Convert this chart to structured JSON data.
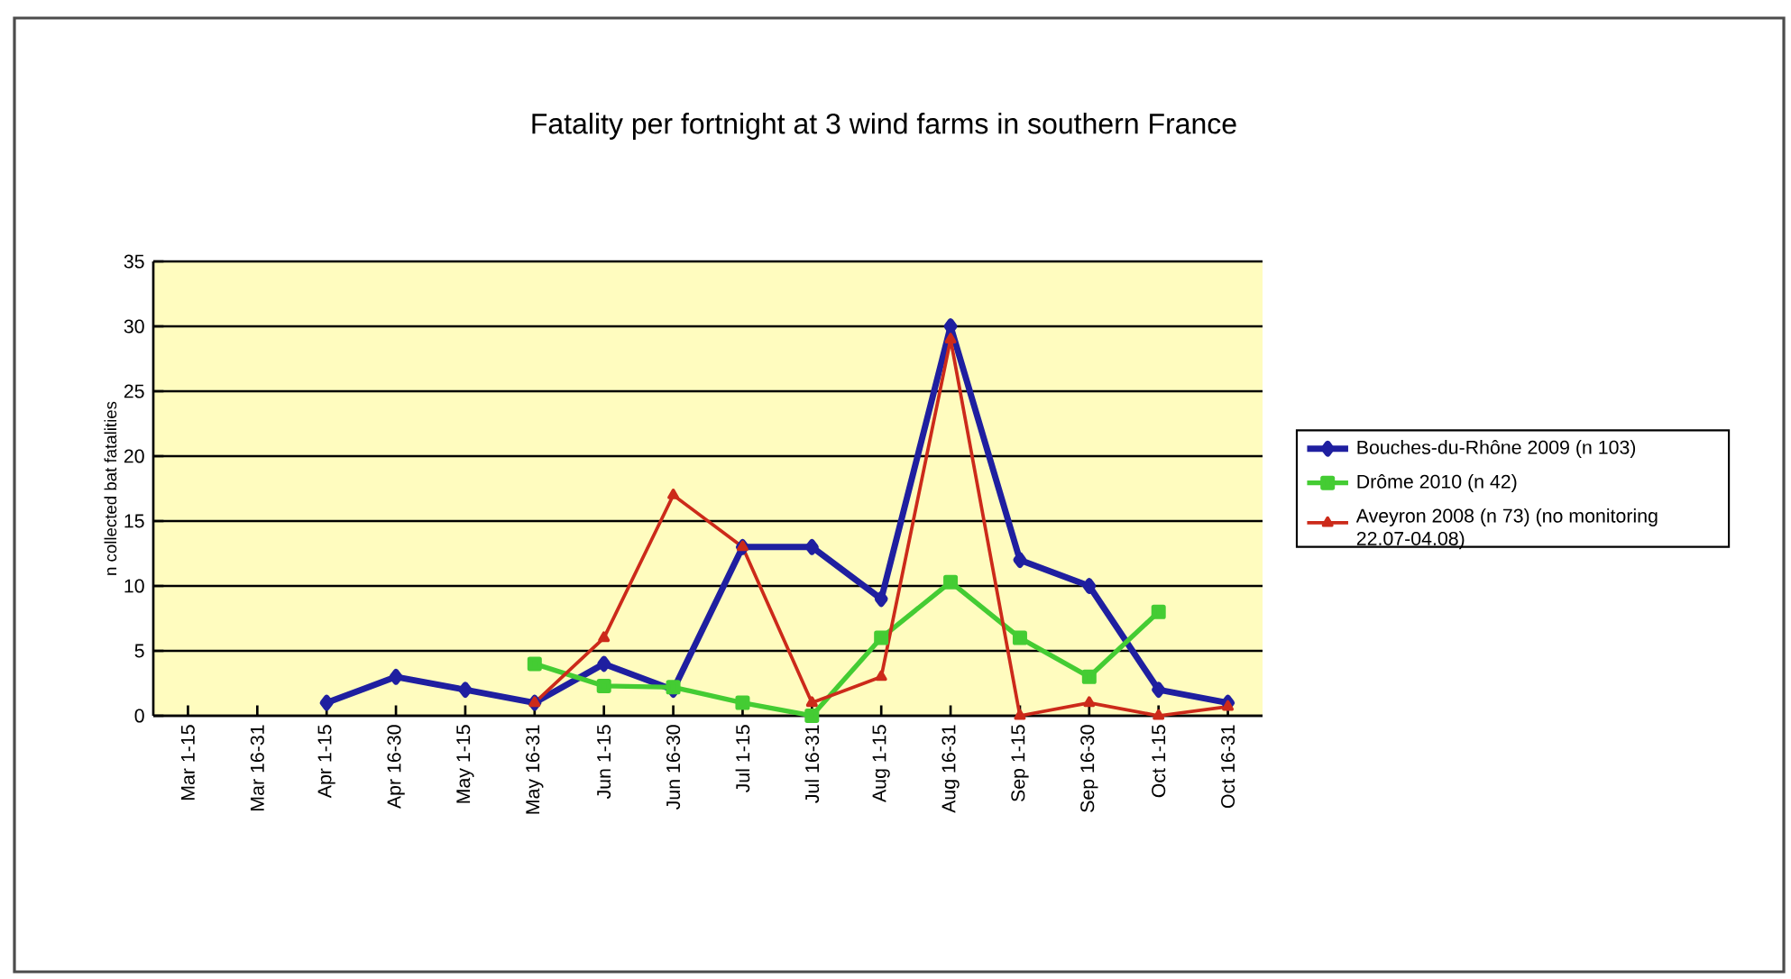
{
  "chart_data": {
    "type": "line",
    "title": "Fatality per fortnight  at 3 wind farms in southern France",
    "ylabel": "n collected bat fatalities",
    "categories": [
      "Mar 1-15",
      "Mar 16-31",
      "Apr 1-15",
      "Apr 16-30",
      "May 1-15",
      "May 16-31",
      "Jun 1-15",
      "Jun 16-30",
      "Jul 1-15",
      "Jul 16-31",
      "Aug 1-15",
      "Aug 16-31",
      "Sep 1-15",
      "Sep 16-30",
      "Oct 1-15",
      "Oct 16-31"
    ],
    "series": [
      {
        "name": "Bouches-du-Rhône 2009 (n 103)",
        "color": "#1f1fa0",
        "marker": "diamond",
        "values": [
          null,
          null,
          1,
          3,
          2,
          1,
          4,
          2,
          13,
          13,
          9,
          30,
          12,
          10,
          2,
          1
        ]
      },
      {
        "name": "Drôme  2010 (n 42)",
        "color": "#44cc33",
        "marker": "square",
        "values": [
          null,
          null,
          null,
          null,
          null,
          4,
          2.3,
          2.2,
          1,
          0,
          6,
          10.3,
          6,
          3,
          8,
          null
        ]
      },
      {
        "name": "Aveyron 2008 (n 73) (no monitoring 22.07-04.08)",
        "color": "#cc2a1a",
        "marker": "triangle",
        "values": [
          null,
          null,
          null,
          null,
          null,
          1,
          6,
          17,
          13,
          1,
          3,
          29,
          0,
          1,
          0,
          0.7
        ]
      }
    ],
    "ylim": [
      0,
      35
    ],
    "yticks": [
      0,
      5,
      10,
      15,
      20,
      25,
      30,
      35
    ],
    "grid": "y",
    "legend": "right"
  }
}
